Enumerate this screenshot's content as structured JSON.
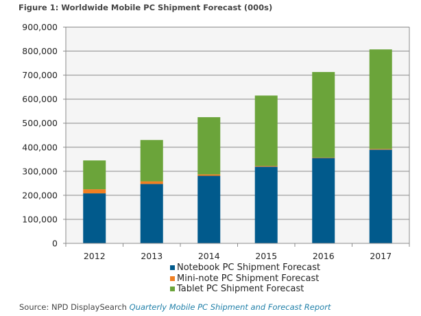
{
  "title": "Figure 1: Worldwide Mobile PC Shipment Forecast (000s)",
  "source": {
    "prefix": "Source: NPD DisplaySearch",
    "report": "Quarterly Mobile PC Shipment and Forecast Report"
  },
  "chart_data": {
    "type": "bar",
    "stacked": true,
    "title": "Figure 1: Worldwide Mobile PC Shipment Forecast (000s)",
    "xlabel": "",
    "ylabel": "",
    "categories": [
      "2012",
      "2013",
      "2014",
      "2015",
      "2016",
      "2017"
    ],
    "ylim": [
      0,
      900000
    ],
    "yticks": [
      0,
      100000,
      200000,
      300000,
      400000,
      500000,
      600000,
      700000,
      800000,
      900000
    ],
    "ytick_labels": [
      "0",
      "100,000",
      "200,000",
      "300,000",
      "400,000",
      "500,000",
      "600,000",
      "700,000",
      "800,000",
      "900,000"
    ],
    "grid": true,
    "legend_position": "bottom",
    "series": [
      {
        "name": "Notebook PC Shipment Forecast",
        "color": "#015a8c",
        "values": [
          208000,
          247000,
          281000,
          319000,
          355000,
          390000
        ]
      },
      {
        "name": "Mini-note PC Shipment Forecast",
        "color": "#f07f22",
        "values": [
          17000,
          11000,
          6000,
          3000,
          2000,
          3000
        ]
      },
      {
        "name": "Tablet PC Shipment Forecast",
        "color": "#6ba43a",
        "values": [
          120000,
          172000,
          238000,
          293000,
          356000,
          414000
        ]
      }
    ]
  }
}
